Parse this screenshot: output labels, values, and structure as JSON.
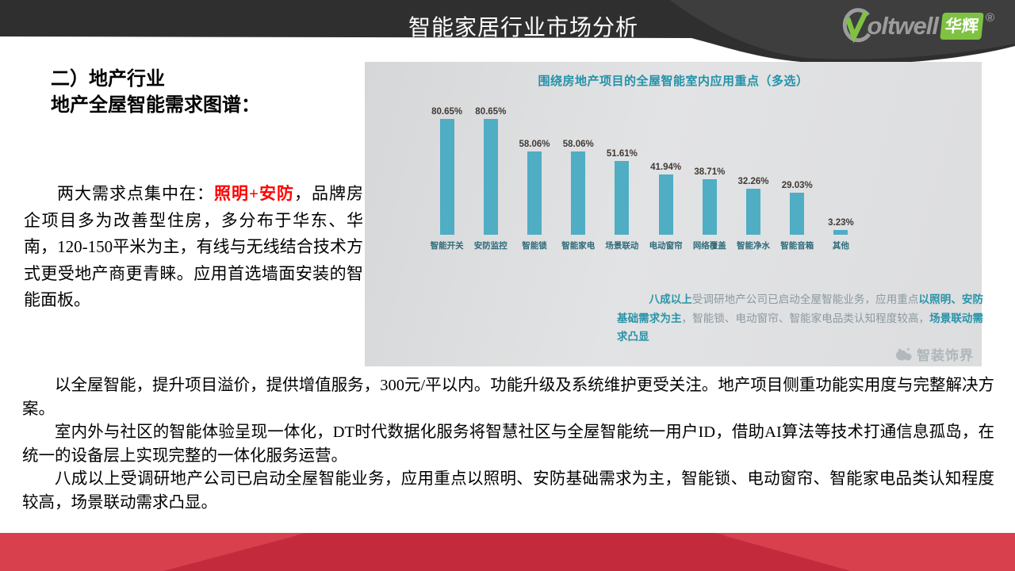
{
  "header": {
    "title": "智能家居行业市场分析",
    "logo": {
      "brand": "oltwell",
      "badge": "华辉",
      "registered": "®"
    }
  },
  "left": {
    "heading_line1": "二）地产行业",
    "heading_line2": "地产全屋智能需求图谱：",
    "para": {
      "lead": "两大需求点集中在：",
      "highlight": "照明+安防",
      "rest": "，品牌房企项目多为改善型住房，多分布于华东、华南，120-150平米为主，有线与无线结合技术方式更受地产商更青睐。应用首选墙面安装的智能面板。"
    }
  },
  "chart_data": {
    "type": "bar",
    "title": "围绕房地产项目的全屋智能室内应用重点（多选）",
    "categories": [
      "智能开关",
      "安防监控",
      "智能锁",
      "智能家电",
      "场景联动",
      "电动窗帘",
      "网络覆盖",
      "智能净水",
      "智能音箱",
      "其他"
    ],
    "values": [
      80.65,
      80.65,
      58.06,
      58.06,
      51.61,
      41.94,
      38.71,
      32.26,
      29.03,
      3.23
    ],
    "value_labels": [
      "80.65%",
      "80.65%",
      "58.06%",
      "58.06%",
      "51.61%",
      "41.94%",
      "38.71%",
      "32.26%",
      "29.03%",
      "3.23%"
    ],
    "ylim": [
      0,
      100
    ],
    "bar_color": "#4fadc4",
    "grid": false,
    "legend": "none",
    "note_segments": [
      {
        "text": "八成以上",
        "bold": true
      },
      {
        "text": "受调研地产公司已启动全屋智能业务，应用重点",
        "bold": false
      },
      {
        "text": "以照明、安防基础需求为主",
        "bold": true
      },
      {
        "text": "，智能锁、电动窗帘、智能家电品类认知程度较高，",
        "bold": false
      },
      {
        "text": "场景联动需求凸显",
        "bold": true
      }
    ],
    "watermark": "智装饰界"
  },
  "bottom": {
    "paragraphs": [
      "以全屋智能，提升项目溢价，提供增值服务，300元/平以内。功能升级及系统维护更受关注。地产项目侧重功能实用度与完整解决方案。",
      "室内外与社区的智能体验呈现一体化，DT时代数据化服务将智慧社区与全屋智能统一用户ID，借助AI算法等技术打通信息孤岛，在统一的设备层上实现完整的一体化服务运营。",
      "八成以上受调研地产公司已启动全屋智能业务，应用重点以照明、安防基础需求为主，智能锁、电动窗帘、智能家电品类认知程度较高，场景联动需求凸显。"
    ]
  },
  "colors": {
    "header_dark": "#2f2f2f",
    "header_swoosh": "#3e3e3e",
    "footer_band": "#d9404e",
    "footer_trapezoid": "#c32b3d",
    "bar": "#4fadc4",
    "note_teal": "#2a93a8",
    "highlight_red": "#ff0000",
    "logo_green": "#7fc241"
  }
}
